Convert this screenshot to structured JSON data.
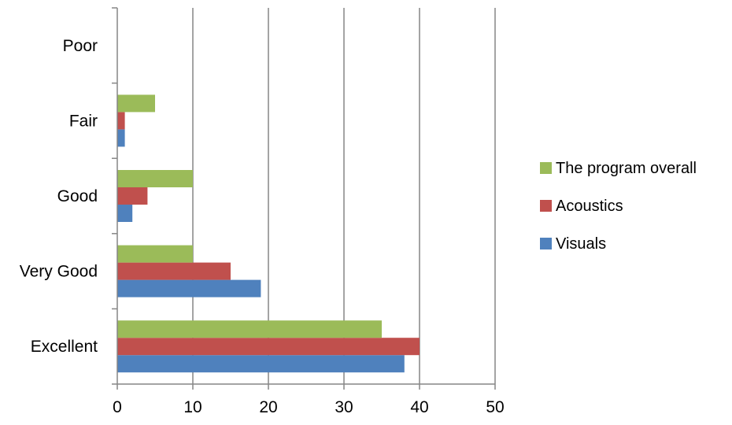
{
  "chart_data": {
    "type": "bar",
    "orientation": "horizontal",
    "title": "",
    "xlabel": "",
    "ylabel": "",
    "categories": [
      "Excellent",
      "Very Good",
      "Good",
      "Fair",
      "Poor"
    ],
    "series": [
      {
        "name": "Visuals",
        "color": "#4F81BD",
        "values": [
          38,
          19,
          2,
          1,
          0
        ]
      },
      {
        "name": "Acoustics",
        "color": "#C0504D",
        "values": [
          40,
          15,
          4,
          1,
          0
        ]
      },
      {
        "name": "The program overall",
        "color": "#9BBB59",
        "values": [
          35,
          10,
          10,
          5,
          0
        ]
      }
    ],
    "xlim": [
      0,
      50
    ],
    "xticks": [
      0,
      10,
      20,
      30,
      40,
      50
    ],
    "grid": "vertical",
    "legend_position": "right",
    "legend_order": [
      "The program overall",
      "Acoustics",
      "Visuals"
    ]
  }
}
